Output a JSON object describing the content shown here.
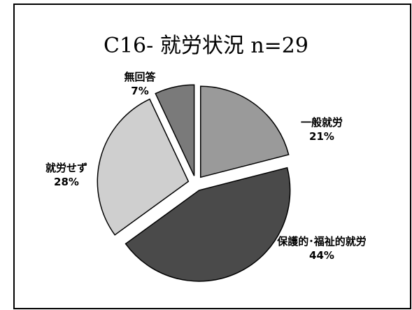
{
  "chart_data": {
    "type": "pie",
    "title": "C16- 就労状況 n=29",
    "categories": [
      "一般就労",
      "保護的･福祉的就労",
      "就労せず",
      "無回答"
    ],
    "values": [
      21,
      44,
      28,
      7
    ],
    "value_labels": [
      "21%",
      "44%",
      "28%",
      "7%"
    ],
    "colors": [
      "#9a9a9a",
      "#4a4a4a",
      "#cfcfcf",
      "#7a7a7a"
    ]
  }
}
